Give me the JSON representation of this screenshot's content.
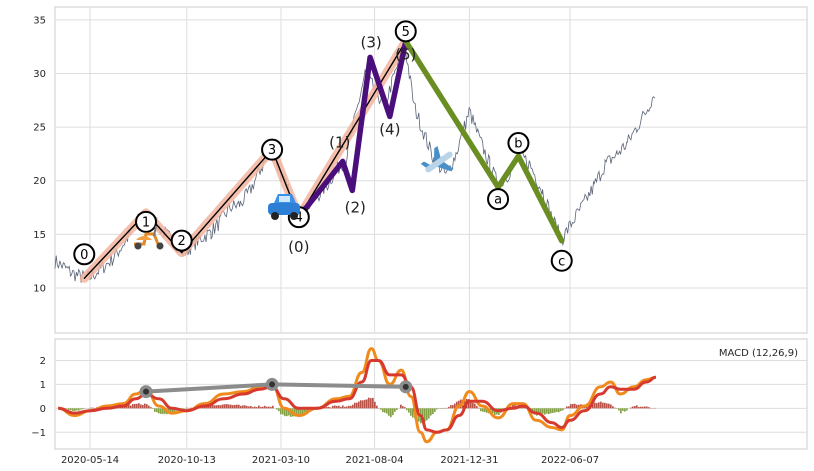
{
  "chart_data": [
    {
      "type": "line",
      "title": "",
      "xlabel": "",
      "ylabel": "",
      "ylim": [
        5.8,
        36.2
      ],
      "x_ticks": [
        "2020-05-14",
        "2020-10-13",
        "2021-03-10",
        "2021-08-04",
        "2021-12-31",
        "2022-06-07"
      ],
      "y_ticks": [
        10,
        15,
        20,
        25,
        30,
        35
      ],
      "grid": true,
      "colors": {
        "price": "#5a6478",
        "impulse_band": "#f2b49e",
        "impulse_line": "#000000",
        "subwave": "#4b0f7c",
        "correction": "#6b8e23"
      },
      "price_path": [
        [
          "2020-03-20",
          12.5
        ],
        [
          "2020-04-02",
          12.0
        ],
        [
          "2020-04-15",
          11.4
        ],
        [
          "2020-05-01",
          11.0
        ],
        [
          "2020-05-14",
          11.0
        ],
        [
          "2020-06-01",
          11.8
        ],
        [
          "2020-06-20",
          12.8
        ],
        [
          "2020-07-10",
          14.5
        ],
        [
          "2020-07-25",
          16.0
        ],
        [
          "2020-08-07",
          17.0
        ],
        [
          "2020-08-25",
          16.0
        ],
        [
          "2020-09-10",
          15.0
        ],
        [
          "2020-09-25",
          14.2
        ],
        [
          "2020-10-05",
          13.3
        ],
        [
          "2020-10-13",
          13.5
        ],
        [
          "2020-11-01",
          14.5
        ],
        [
          "2020-11-20",
          15.2
        ],
        [
          "2020-12-05",
          16.2
        ],
        [
          "2020-12-20",
          17.5
        ],
        [
          "2021-01-05",
          17.8
        ],
        [
          "2021-01-20",
          19.0
        ],
        [
          "2021-02-05",
          21.0
        ],
        [
          "2021-02-24",
          22.9
        ],
        [
          "2021-03-10",
          20.5
        ],
        [
          "2021-03-25",
          18.5
        ],
        [
          "2021-04-07",
          16.8
        ],
        [
          "2021-04-20",
          17.5
        ],
        [
          "2021-05-05",
          18.5
        ],
        [
          "2021-05-20",
          19.5
        ],
        [
          "2021-06-05",
          21.0
        ],
        [
          "2021-06-20",
          22.0
        ],
        [
          "2021-07-05",
          26.0
        ],
        [
          "2021-07-20",
          30.0
        ],
        [
          "2021-08-04",
          28.5
        ],
        [
          "2021-08-20",
          27.0
        ],
        [
          "2021-09-05",
          30.0
        ],
        [
          "2021-09-20",
          32.9
        ],
        [
          "2021-10-05",
          27.0
        ],
        [
          "2021-10-20",
          24.5
        ],
        [
          "2021-11-05",
          22.0
        ],
        [
          "2021-11-25",
          20.5
        ],
        [
          "2021-12-10",
          22.5
        ],
        [
          "2021-12-31",
          26.5
        ],
        [
          "2022-01-15",
          24.0
        ],
        [
          "2022-02-01",
          21.5
        ],
        [
          "2022-02-14",
          19.6
        ],
        [
          "2022-03-01",
          20.5
        ],
        [
          "2022-03-20",
          22.5
        ],
        [
          "2022-04-05",
          21.5
        ],
        [
          "2022-04-25",
          19.0
        ],
        [
          "2022-05-10",
          16.5
        ],
        [
          "2022-05-25",
          14.5
        ],
        [
          "2022-06-07",
          15.8
        ],
        [
          "2022-06-25",
          17.5
        ],
        [
          "2022-07-15",
          19.5
        ],
        [
          "2022-08-01",
          21.5
        ],
        [
          "2022-08-20",
          22.5
        ],
        [
          "2022-09-05",
          23.5
        ],
        [
          "2022-09-20",
          25.0
        ],
        [
          "2022-10-05",
          26.5
        ],
        [
          "2022-10-20",
          28.5
        ]
      ],
      "waves": {
        "impulse": [
          {
            "label": "0",
            "date": "2020-05-05",
            "value": 10.9
          },
          {
            "label": "1",
            "date": "2020-08-10",
            "value": 17.0
          },
          {
            "label": "2",
            "date": "2020-10-05",
            "value": 13.3
          },
          {
            "label": "3",
            "date": "2021-02-24",
            "value": 22.9
          },
          {
            "label": "4",
            "date": "2021-04-07",
            "value": 16.6
          },
          {
            "label": "5",
            "date": "2021-09-22",
            "value": 33.0
          }
        ],
        "subwaves": [
          {
            "label": "(0)",
            "date": "2021-04-07",
            "value": 16.6
          },
          {
            "label": "(1)",
            "date": "2021-06-15",
            "value": 21.8
          },
          {
            "label": "(2)",
            "date": "2021-06-30",
            "value": 19.1
          },
          {
            "label": "(3)",
            "date": "2021-07-28",
            "value": 31.5
          },
          {
            "label": "(4)",
            "date": "2021-08-28",
            "value": 26.0
          },
          {
            "label": "(5)",
            "date": "2021-09-22",
            "value": 33.0
          }
        ],
        "correction": [
          {
            "label": "a",
            "date": "2022-02-14",
            "value": 19.4
          },
          {
            "label": "b",
            "date": "2022-03-18",
            "value": 22.3
          },
          {
            "label": "c",
            "date": "2022-05-25",
            "value": 14.4
          }
        ]
      },
      "icons": [
        "scooter-icon",
        "car-icon",
        "airplane-icon"
      ]
    },
    {
      "type": "line",
      "title": "",
      "legend": "MACD (12,26,9)",
      "legend_position": "top-right",
      "ylim": [
        -1.7,
        2.9
      ],
      "y_ticks": [
        -1,
        0,
        1,
        2
      ],
      "series": [
        {
          "name": "",
          "color": "#f08a1c",
          "points": [
            [
              "2020-03-25",
              0.0
            ],
            [
              "2020-04-20",
              -0.3
            ],
            [
              "2020-05-14",
              -0.1
            ],
            [
              "2020-06-10",
              0.1
            ],
            [
              "2020-07-05",
              0.2
            ],
            [
              "2020-07-25",
              0.6
            ],
            [
              "2020-08-10",
              0.8
            ],
            [
              "2020-08-30",
              0.1
            ],
            [
              "2020-09-20",
              -0.2
            ],
            [
              "2020-10-13",
              -0.1
            ],
            [
              "2020-11-10",
              0.2
            ],
            [
              "2020-12-10",
              0.6
            ],
            [
              "2021-01-10",
              0.7
            ],
            [
              "2021-02-05",
              0.9
            ],
            [
              "2021-02-24",
              1.0
            ],
            [
              "2021-03-15",
              0.0
            ],
            [
              "2021-04-07",
              -0.3
            ],
            [
              "2021-05-05",
              0.0
            ],
            [
              "2021-06-05",
              0.4
            ],
            [
              "2021-06-25",
              0.5
            ],
            [
              "2021-07-15",
              1.5
            ],
            [
              "2021-07-30",
              2.5
            ],
            [
              "2021-08-10",
              2.0
            ],
            [
              "2021-08-28",
              1.0
            ],
            [
              "2021-09-15",
              1.6
            ],
            [
              "2021-09-30",
              0.5
            ],
            [
              "2021-10-15",
              -1.0
            ],
            [
              "2021-10-25",
              -1.4
            ],
            [
              "2021-11-10",
              -1.0
            ],
            [
              "2021-11-25",
              -0.9
            ],
            [
              "2021-12-15",
              0.1
            ],
            [
              "2021-12-31",
              0.7
            ],
            [
              "2022-01-20",
              0.1
            ],
            [
              "2022-02-14",
              -0.4
            ],
            [
              "2022-03-10",
              0.2
            ],
            [
              "2022-03-25",
              0.2
            ],
            [
              "2022-04-15",
              -0.5
            ],
            [
              "2022-05-10",
              -0.8
            ],
            [
              "2022-05-25",
              -0.9
            ],
            [
              "2022-06-07",
              -0.3
            ],
            [
              "2022-06-30",
              0.1
            ],
            [
              "2022-07-25",
              0.9
            ],
            [
              "2022-08-10",
              1.1
            ],
            [
              "2022-08-25",
              0.6
            ],
            [
              "2022-09-15",
              0.9
            ],
            [
              "2022-10-05",
              1.2
            ],
            [
              "2022-10-20",
              1.3
            ]
          ]
        },
        {
          "name": "",
          "color": "#d63a2f",
          "points": [
            [
              "2020-03-25",
              0.0
            ],
            [
              "2020-04-20",
              -0.2
            ],
            [
              "2020-05-14",
              -0.1
            ],
            [
              "2020-06-10",
              0.0
            ],
            [
              "2020-07-05",
              0.1
            ],
            [
              "2020-07-25",
              0.4
            ],
            [
              "2020-08-10",
              0.6
            ],
            [
              "2020-08-30",
              0.4
            ],
            [
              "2020-09-20",
              0.0
            ],
            [
              "2020-10-13",
              -0.1
            ],
            [
              "2020-11-10",
              0.1
            ],
            [
              "2020-12-10",
              0.4
            ],
            [
              "2021-01-10",
              0.6
            ],
            [
              "2021-02-05",
              0.8
            ],
            [
              "2021-02-24",
              0.9
            ],
            [
              "2021-03-15",
              0.4
            ],
            [
              "2021-04-07",
              0.0
            ],
            [
              "2021-05-05",
              0.0
            ],
            [
              "2021-06-05",
              0.3
            ],
            [
              "2021-06-25",
              0.4
            ],
            [
              "2021-07-15",
              1.1
            ],
            [
              "2021-07-30",
              2.0
            ],
            [
              "2021-08-10",
              2.0
            ],
            [
              "2021-08-28",
              1.4
            ],
            [
              "2021-09-15",
              1.4
            ],
            [
              "2021-09-30",
              0.9
            ],
            [
              "2021-10-15",
              -0.3
            ],
            [
              "2021-10-25",
              -0.9
            ],
            [
              "2021-11-10",
              -1.0
            ],
            [
              "2021-11-25",
              -0.9
            ],
            [
              "2021-12-15",
              -0.3
            ],
            [
              "2021-12-31",
              0.3
            ],
            [
              "2022-01-20",
              0.3
            ],
            [
              "2022-02-14",
              -0.1
            ],
            [
              "2022-03-10",
              0.0
            ],
            [
              "2022-03-25",
              0.1
            ],
            [
              "2022-04-15",
              -0.2
            ],
            [
              "2022-05-10",
              -0.6
            ],
            [
              "2022-05-25",
              -0.8
            ],
            [
              "2022-06-07",
              -0.5
            ],
            [
              "2022-06-30",
              -0.1
            ],
            [
              "2022-07-25",
              0.6
            ],
            [
              "2022-08-10",
              0.9
            ],
            [
              "2022-08-25",
              0.8
            ],
            [
              "2022-09-15",
              0.8
            ],
            [
              "2022-10-05",
              1.1
            ],
            [
              "2022-10-20",
              1.3
            ]
          ]
        }
      ],
      "divergence_line": {
        "color": "#8c8c8c",
        "points": [
          [
            "2020-08-10",
            0.7
          ],
          [
            "2021-02-24",
            1.0
          ],
          [
            "2021-09-22",
            0.9
          ]
        ]
      },
      "histogram_colors": {
        "positive": "#a93226",
        "negative": "#6b8e23"
      }
    }
  ]
}
